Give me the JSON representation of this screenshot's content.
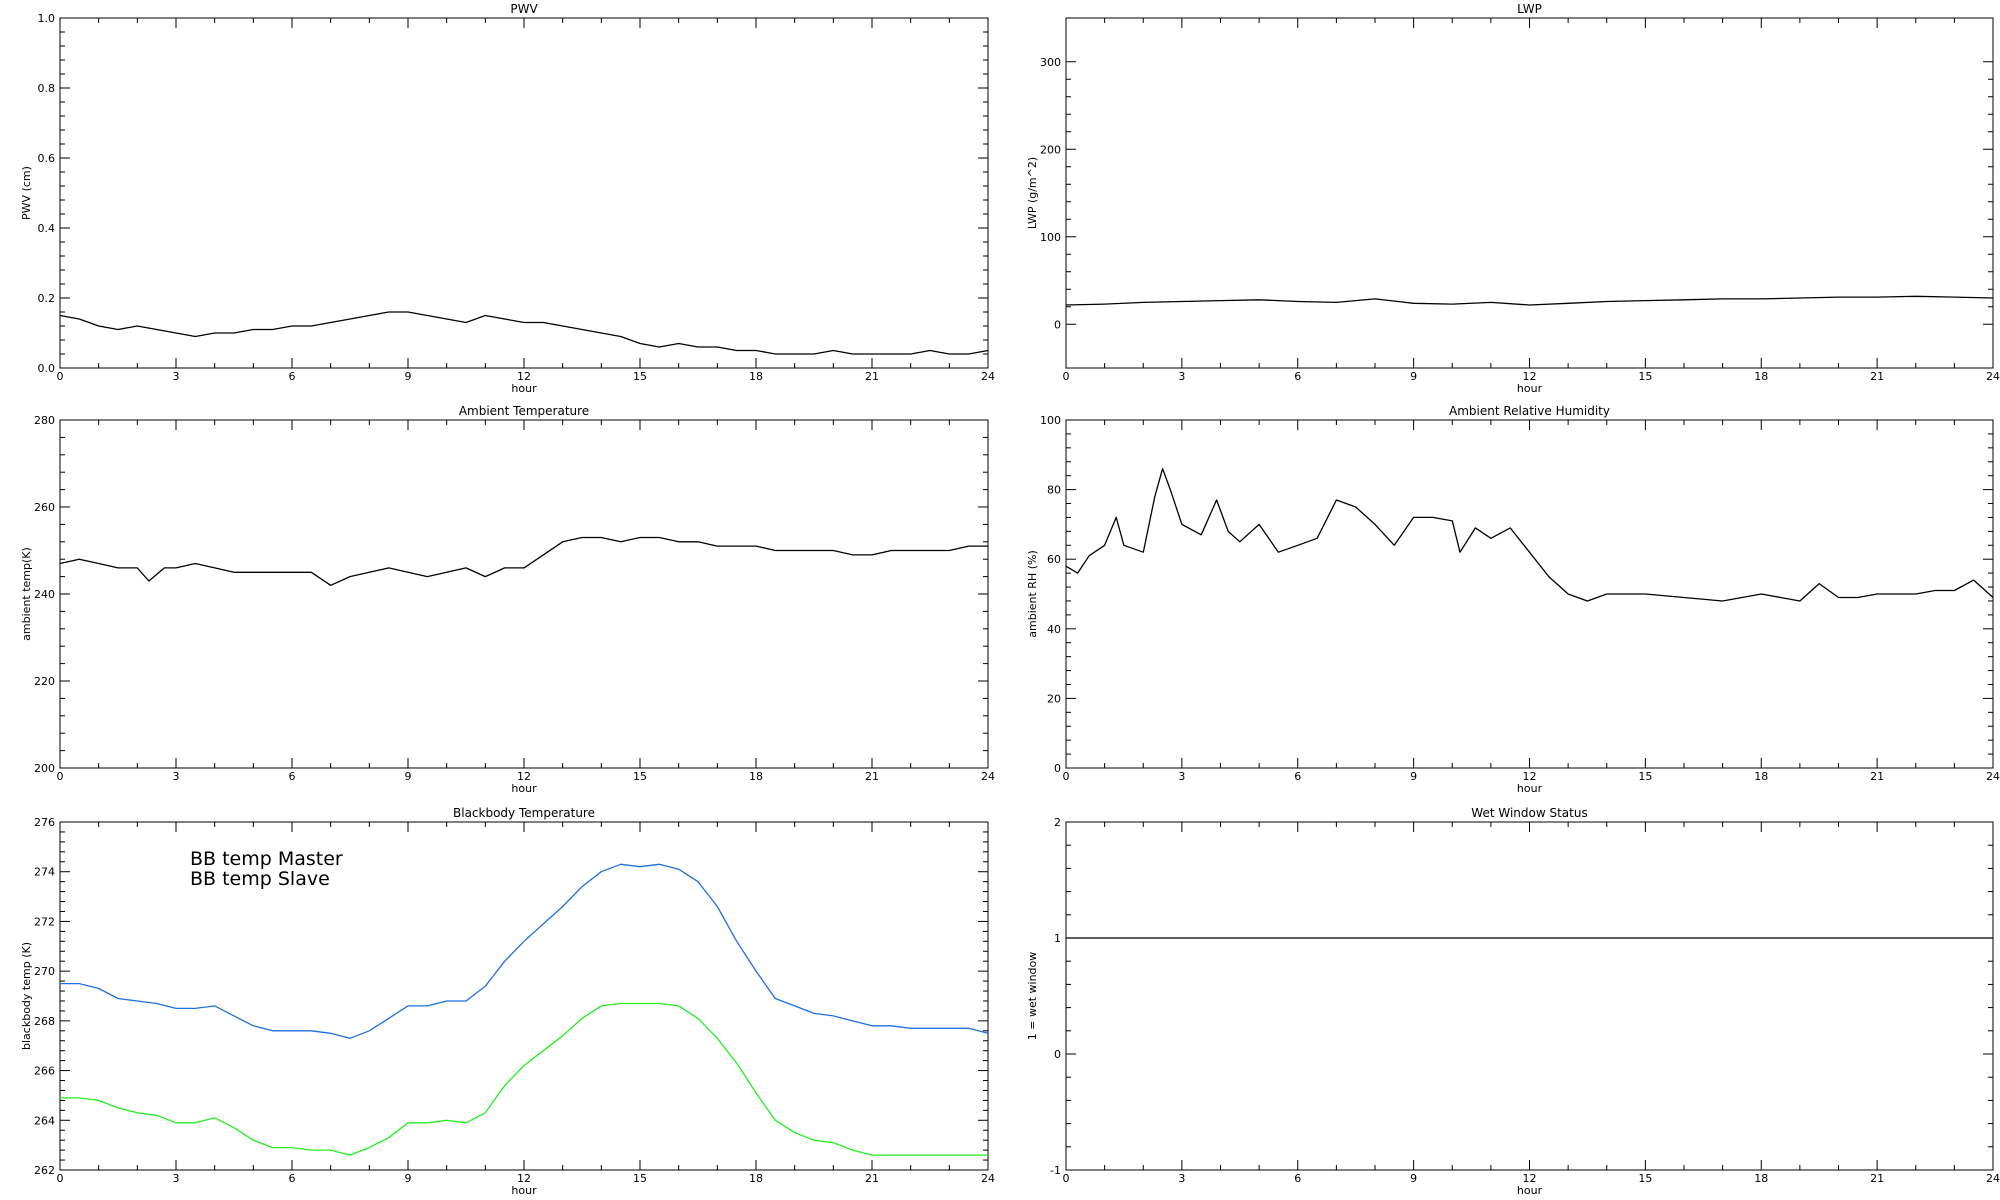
{
  "colors": {
    "background": "#ffffff",
    "axis": "#000000",
    "series_default": "#000000",
    "bb_master": "#1f6fe0",
    "bb_slave": "#22ee22"
  },
  "chart_data": [
    {
      "id": "pwv",
      "type": "line",
      "title": "PWV",
      "xlabel": "hour",
      "ylabel": "PWV (cm)",
      "xlim": [
        0,
        24
      ],
      "ylim": [
        0,
        1.0
      ],
      "xticks": [
        0,
        3,
        6,
        9,
        12,
        15,
        18,
        21,
        24
      ],
      "yticks": [
        "0.0",
        "0.2",
        "0.4",
        "0.6",
        "0.8",
        "1.0"
      ],
      "grid": false,
      "series": [
        {
          "color": "#000000",
          "x": [
            0,
            0.5,
            1,
            1.5,
            2,
            2.5,
            3,
            3.5,
            4,
            4.5,
            5,
            5.5,
            6,
            6.5,
            7,
            7.5,
            8,
            8.5,
            9,
            9.5,
            10,
            10.5,
            11,
            11.5,
            12,
            12.5,
            13,
            13.5,
            14,
            14.5,
            15,
            15.5,
            16,
            16.5,
            17,
            17.5,
            18,
            18.5,
            19,
            19.5,
            20,
            20.5,
            21,
            21.5,
            22,
            22.5,
            23,
            23.5,
            24
          ],
          "y": [
            0.15,
            0.14,
            0.12,
            0.11,
            0.12,
            0.11,
            0.1,
            0.09,
            0.1,
            0.1,
            0.11,
            0.11,
            0.12,
            0.12,
            0.13,
            0.14,
            0.15,
            0.16,
            0.16,
            0.15,
            0.14,
            0.13,
            0.15,
            0.14,
            0.13,
            0.13,
            0.12,
            0.11,
            0.1,
            0.09,
            0.07,
            0.06,
            0.07,
            0.06,
            0.06,
            0.05,
            0.05,
            0.04,
            0.04,
            0.04,
            0.05,
            0.04,
            0.04,
            0.04,
            0.04,
            0.05,
            0.04,
            0.04,
            0.05
          ]
        }
      ]
    },
    {
      "id": "lwp",
      "type": "line",
      "title": "LWP",
      "xlabel": "hour",
      "ylabel": "LWP (g/m^2)",
      "xlim": [
        0,
        24
      ],
      "ylim": [
        -50,
        350
      ],
      "xticks": [
        0,
        3,
        6,
        9,
        12,
        15,
        18,
        21,
        24
      ],
      "yticks": [
        "0",
        "100",
        "200",
        "300"
      ],
      "grid": false,
      "series": [
        {
          "color": "#000000",
          "x": [
            0,
            1,
            2,
            3,
            4,
            5,
            6,
            7,
            8,
            9,
            10,
            11,
            12,
            13,
            14,
            15,
            16,
            17,
            18,
            19,
            20,
            21,
            22,
            23,
            24
          ],
          "y": [
            22,
            23,
            25,
            26,
            27,
            28,
            26,
            25,
            29,
            24,
            23,
            25,
            22,
            24,
            26,
            27,
            28,
            29,
            29,
            30,
            31,
            31,
            32,
            31,
            30
          ]
        }
      ]
    },
    {
      "id": "ambient-temp",
      "type": "line",
      "title": "Ambient Temperature",
      "xlabel": "hour",
      "ylabel": "ambient temp(K)",
      "xlim": [
        0,
        24
      ],
      "ylim": [
        200,
        280
      ],
      "xticks": [
        0,
        3,
        6,
        9,
        12,
        15,
        18,
        21,
        24
      ],
      "yticks": [
        "200",
        "220",
        "240",
        "260",
        "280"
      ],
      "grid": false,
      "series": [
        {
          "color": "#000000",
          "x": [
            0,
            0.5,
            1,
            1.5,
            2,
            2.3,
            2.7,
            3,
            3.5,
            4,
            4.5,
            5,
            5.5,
            6,
            6.5,
            7,
            7.5,
            8,
            8.5,
            9,
            9.5,
            10,
            10.5,
            11,
            11.5,
            12,
            12.5,
            13,
            13.5,
            14,
            14.5,
            15,
            15.5,
            16,
            16.5,
            17,
            17.5,
            18,
            18.5,
            19,
            19.5,
            20,
            20.5,
            21,
            21.5,
            22,
            22.5,
            23,
            23.5,
            24
          ],
          "y": [
            247,
            248,
            247,
            246,
            246,
            243,
            246,
            246,
            247,
            246,
            245,
            245,
            245,
            245,
            245,
            242,
            244,
            245,
            246,
            245,
            244,
            245,
            246,
            244,
            246,
            246,
            249,
            252,
            253,
            253,
            252,
            253,
            253,
            252,
            252,
            251,
            251,
            251,
            250,
            250,
            250,
            250,
            249,
            249,
            250,
            250,
            250,
            250,
            251,
            251
          ]
        }
      ]
    },
    {
      "id": "ambient-rh",
      "type": "line",
      "title": "Ambient Relative Humidity",
      "xlabel": "hour",
      "ylabel": "ambient RH (%)",
      "xlim": [
        0,
        24
      ],
      "ylim": [
        0,
        100
      ],
      "xticks": [
        0,
        3,
        6,
        9,
        12,
        15,
        18,
        21,
        24
      ],
      "yticks": [
        "0",
        "20",
        "40",
        "60",
        "80",
        "100"
      ],
      "grid": false,
      "series": [
        {
          "color": "#000000",
          "x": [
            0,
            0.3,
            0.6,
            1,
            1.3,
            1.5,
            2,
            2.3,
            2.5,
            2.7,
            3,
            3.5,
            3.9,
            4.2,
            4.5,
            5,
            5.5,
            6,
            6.5,
            7,
            7.5,
            8,
            8.5,
            9,
            9.5,
            10,
            10.2,
            10.6,
            11,
            11.5,
            12,
            12.5,
            13,
            13.5,
            14,
            15,
            16,
            17,
            18,
            18.5,
            19,
            19.5,
            20,
            20.5,
            21,
            21.5,
            22,
            22.5,
            23,
            23.5,
            24
          ],
          "y": [
            58,
            56,
            61,
            64,
            72,
            64,
            62,
            78,
            86,
            80,
            70,
            67,
            77,
            68,
            65,
            70,
            62,
            64,
            66,
            77,
            75,
            70,
            64,
            72,
            72,
            71,
            62,
            69,
            66,
            69,
            62,
            55,
            50,
            48,
            50,
            50,
            49,
            48,
            50,
            49,
            48,
            53,
            49,
            49,
            50,
            50,
            50,
            51,
            51,
            54,
            49
          ]
        }
      ]
    },
    {
      "id": "blackbody-temp",
      "type": "line",
      "title": "Blackbody Temperature",
      "xlabel": "hour",
      "ylabel": "blackbody temp (K)",
      "xlim": [
        0,
        24
      ],
      "ylim": [
        262,
        276
      ],
      "xticks": [
        0,
        3,
        6,
        9,
        12,
        15,
        18,
        21,
        24
      ],
      "yticks": [
        "262",
        "264",
        "266",
        "268",
        "270",
        "272",
        "274",
        "276"
      ],
      "grid": false,
      "legend": "top-left",
      "series": [
        {
          "name": "BB temp Master",
          "color": "#1f6fe0",
          "x": [
            0,
            0.5,
            1,
            1.5,
            2,
            2.5,
            3,
            3.5,
            4,
            4.5,
            5,
            5.5,
            6,
            6.5,
            7,
            7.5,
            8,
            8.5,
            9,
            9.5,
            10,
            10.5,
            11,
            11.5,
            12,
            12.5,
            13,
            13.5,
            14,
            14.5,
            15,
            15.5,
            16,
            16.5,
            17,
            17.5,
            18,
            18.5,
            19,
            19.5,
            20,
            20.5,
            21,
            21.5,
            22,
            22.5,
            23,
            23.5,
            24
          ],
          "y": [
            269.5,
            269.5,
            269.3,
            268.9,
            268.8,
            268.7,
            268.5,
            268.5,
            268.6,
            268.2,
            267.8,
            267.6,
            267.6,
            267.6,
            267.5,
            267.3,
            267.6,
            268.1,
            268.6,
            268.6,
            268.8,
            268.8,
            269.4,
            270.4,
            271.2,
            271.9,
            272.6,
            273.4,
            274.0,
            274.3,
            274.2,
            274.3,
            274.1,
            273.6,
            272.6,
            271.2,
            270.0,
            268.9,
            268.6,
            268.3,
            268.2,
            268.0,
            267.8,
            267.8,
            267.7,
            267.7,
            267.7,
            267.7,
            267.5
          ]
        },
        {
          "name": "BB temp Slave",
          "color": "#22ee22",
          "x": [
            0,
            0.5,
            1,
            1.5,
            2,
            2.5,
            3,
            3.5,
            4,
            4.5,
            5,
            5.5,
            6,
            6.5,
            7,
            7.5,
            8,
            8.5,
            9,
            9.5,
            10,
            10.5,
            11,
            11.5,
            12,
            12.5,
            13,
            13.5,
            14,
            14.5,
            15,
            15.5,
            16,
            16.5,
            17,
            17.5,
            18,
            18.5,
            19,
            19.5,
            20,
            20.5,
            21,
            21.5,
            22,
            22.5,
            23,
            23.5,
            24
          ],
          "y": [
            264.9,
            264.9,
            264.8,
            264.5,
            264.3,
            264.2,
            263.9,
            263.9,
            264.1,
            263.7,
            263.2,
            262.9,
            262.9,
            262.8,
            262.8,
            262.6,
            262.9,
            263.3,
            263.9,
            263.9,
            264.0,
            263.9,
            264.3,
            265.4,
            266.2,
            266.8,
            267.4,
            268.1,
            268.6,
            268.7,
            268.7,
            268.7,
            268.6,
            268.1,
            267.3,
            266.3,
            265.1,
            264.0,
            263.5,
            263.2,
            263.1,
            262.8,
            262.6,
            262.6,
            262.6,
            262.6,
            262.6,
            262.6,
            262.6
          ]
        }
      ]
    },
    {
      "id": "wet-window",
      "type": "line",
      "title": "Wet Window Status",
      "xlabel": "hour",
      "ylabel": "1 = wet window",
      "xlim": [
        0,
        24
      ],
      "ylim": [
        -1,
        2
      ],
      "xticks": [
        0,
        3,
        6,
        9,
        12,
        15,
        18,
        21,
        24
      ],
      "yticks": [
        "-1",
        "0",
        "1",
        "2"
      ],
      "grid": false,
      "series": [
        {
          "color": "#000000",
          "x": [
            0,
            24
          ],
          "y": [
            1,
            1
          ]
        }
      ]
    }
  ]
}
